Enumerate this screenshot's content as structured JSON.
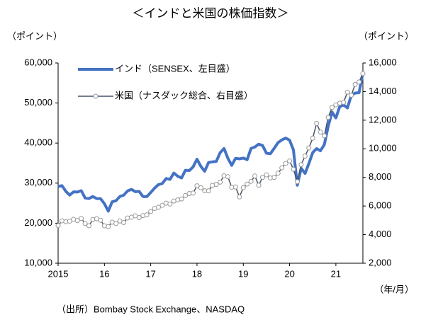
{
  "chart_data": {
    "type": "line",
    "title": "＜インドと米国の株価指数＞",
    "y_label": "（ポイント）",
    "y2_label": "（ポイント）",
    "x_label": "（年/月）",
    "source": "（出所）Bombay Stock Exchange、NASDAQ",
    "categories": [
      "2015",
      null,
      null,
      null,
      null,
      null,
      null,
      null,
      null,
      null,
      null,
      null,
      "16",
      null,
      null,
      null,
      null,
      null,
      null,
      null,
      null,
      null,
      null,
      null,
      "17",
      null,
      null,
      null,
      null,
      null,
      null,
      null,
      null,
      null,
      null,
      null,
      "18",
      null,
      null,
      null,
      null,
      null,
      null,
      null,
      null,
      null,
      null,
      null,
      "19",
      null,
      null,
      null,
      null,
      null,
      null,
      null,
      null,
      null,
      null,
      null,
      "20",
      null,
      null,
      null,
      null,
      null,
      null,
      null,
      null,
      null,
      null,
      null,
      "21",
      null,
      null,
      null,
      null,
      null,
      null,
      null
    ],
    "series": [
      {
        "name": "インド（SENSEX、左目盛）",
        "color": "#4472c4",
        "axis": "y",
        "values": [
          29183,
          29361,
          27957,
          27011,
          27828,
          27781,
          28115,
          26283,
          26155,
          26657,
          26146,
          26118,
          24871,
          23002,
          25342,
          25607,
          26668,
          26999,
          28052,
          28452,
          27866,
          27930,
          26653,
          26626,
          27656,
          28743,
          29621,
          29918,
          31146,
          30922,
          32515,
          31730,
          31284,
          33213,
          33149,
          34057,
          35965,
          34184,
          32969,
          35160,
          35322,
          35423,
          37607,
          38645,
          36227,
          34442,
          36194,
          36068,
          36257,
          35867,
          38673,
          39032,
          39714,
          39395,
          37481,
          37333,
          38667,
          40129,
          40794,
          41254,
          40723,
          38297,
          29468,
          33717,
          32424,
          34916,
          37607,
          38628,
          38068,
          39614,
          44150,
          47751,
          46286,
          49100,
          49509,
          48782,
          51937,
          52483,
          52587,
          57552
        ]
      },
      {
        "name": "米国（ナスダック総合、右目盛）",
        "color": "#44546a",
        "axis": "y2",
        "values": [
          4635,
          4964,
          4901,
          4941,
          5070,
          4987,
          5128,
          4777,
          4620,
          5054,
          5109,
          5007,
          4614,
          4558,
          4870,
          4775,
          4948,
          4843,
          5162,
          5213,
          5312,
          5189,
          5324,
          5383,
          5615,
          5825,
          5912,
          6048,
          6199,
          6140,
          6348,
          6429,
          6496,
          6728,
          6874,
          6903,
          7411,
          7273,
          7063,
          7066,
          7442,
          7510,
          7672,
          8110,
          8046,
          7306,
          7331,
          6635,
          7282,
          7533,
          7729,
          8095,
          7453,
          8006,
          8175,
          7963,
          7999,
          8292,
          8665,
          8973,
          9151,
          8567,
          7700,
          8890,
          9490,
          10058,
          10745,
          11775,
          11168,
          10912,
          12199,
          12888,
          13071,
          13192,
          13247,
          13962,
          13749,
          14504,
          14673,
          15259
        ]
      }
    ],
    "ylim": [
      10000,
      60000
    ],
    "yticks": [
      {
        "value": 10000,
        "label": "10,000"
      },
      {
        "value": 20000,
        "label": "20,000"
      },
      {
        "value": 30000,
        "label": "30,000"
      },
      {
        "value": 40000,
        "label": "40,000"
      },
      {
        "value": 50000,
        "label": "50,000"
      },
      {
        "value": 60000,
        "label": "60,000"
      }
    ],
    "y2lim": [
      2000,
      16000
    ],
    "y2ticks": [
      {
        "value": 2000,
        "label": "2,000"
      },
      {
        "value": 4000,
        "label": "4,000"
      },
      {
        "value": 6000,
        "label": "6,000"
      },
      {
        "value": 8000,
        "label": "8,000"
      },
      {
        "value": 10000,
        "label": "10,000"
      },
      {
        "value": 12000,
        "label": "12,000"
      },
      {
        "value": 14000,
        "label": "14,000"
      },
      {
        "value": 16000,
        "label": "16,000"
      }
    ],
    "grid": false,
    "legend": "upper left"
  }
}
